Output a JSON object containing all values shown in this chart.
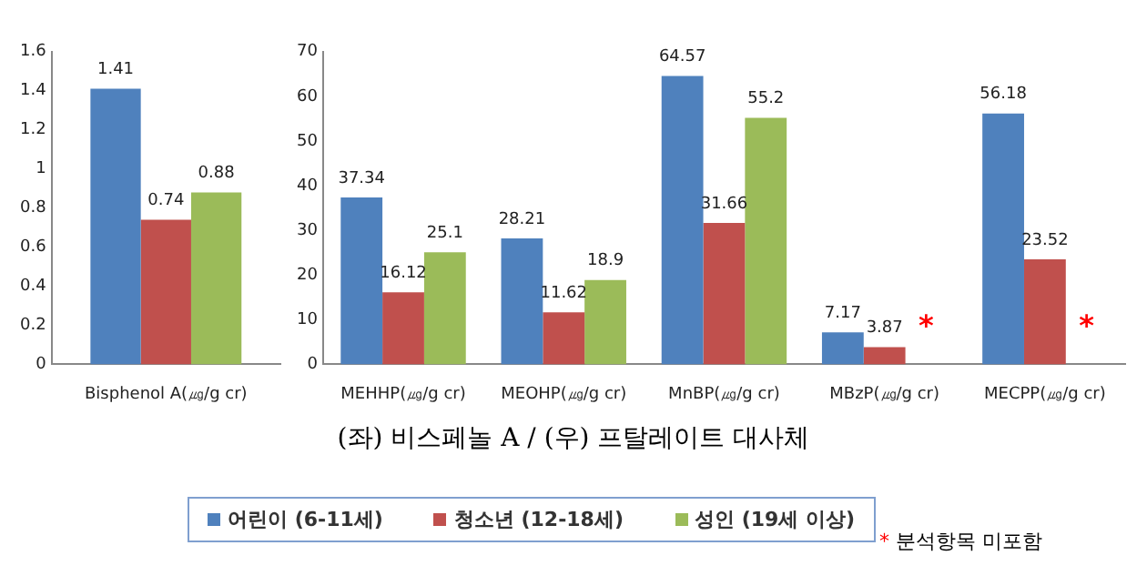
{
  "chart_data": [
    {
      "type": "bar",
      "categories": [
        "Bisphenol A(㎍/g cr)"
      ],
      "series": [
        {
          "color": "#4f81bd",
          "values": [
            1.41
          ]
        },
        {
          "color": "#c0504d",
          "values": [
            0.74
          ]
        },
        {
          "color": "#9bbb59",
          "values": [
            0.88
          ]
        }
      ],
      "ylim": [
        0,
        1.6
      ],
      "yticks": [
        0,
        0.2,
        0.4,
        0.6,
        0.8,
        1,
        1.2,
        1.4,
        1.6
      ],
      "data_labels": true,
      "grid": false
    },
    {
      "type": "bar",
      "categories": [
        "MEHHP(㎍/g cr)",
        "MEOHP(㎍/g cr)",
        "MnBP(㎍/g cr)",
        "MBzP(㎍/g cr)",
        "MECPP(㎍/g cr)"
      ],
      "series": [
        {
          "name": "어린이 (6-11세)",
          "color": "#4f81bd",
          "values": [
            37.34,
            28.21,
            64.57,
            7.17,
            56.18
          ]
        },
        {
          "name": "청소년 (12-18세)",
          "color": "#c0504d",
          "values": [
            16.12,
            11.62,
            31.66,
            3.87,
            23.52
          ]
        },
        {
          "name": "성인 (19세 이상)",
          "color": "#9bbb59",
          "values": [
            25.1,
            18.9,
            55.2,
            null,
            null
          ]
        }
      ],
      "ylim": [
        0,
        70
      ],
      "yticks": [
        0,
        10,
        20,
        30,
        40,
        50,
        60,
        70
      ],
      "data_labels": true,
      "grid": false,
      "legend": "bottom",
      "annotations": [
        "*",
        "*",
        "(좌) 비스페놀 A / (우) 프탈레이트 대사체",
        "* 분석항목 미포함"
      ]
    }
  ]
}
